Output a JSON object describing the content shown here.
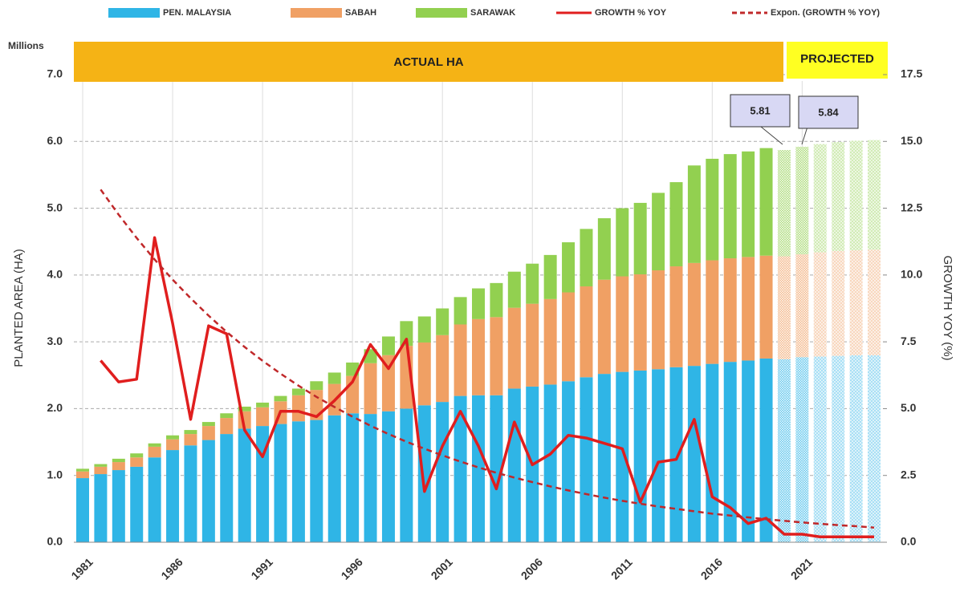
{
  "chart_data": {
    "type": "bar",
    "stacked": true,
    "unit_label": "Millions",
    "y_label": "PLANTED AREA (HA)",
    "y2_label": "GROWTH YOY (%)",
    "bands": [
      "ACTUAL HA",
      "PROJECTED"
    ],
    "annotations": [
      "5.81",
      "5.84"
    ],
    "categories": [
      "1981",
      null,
      null,
      null,
      null,
      "1986",
      null,
      null,
      null,
      null,
      "1991",
      null,
      null,
      null,
      null,
      "1996",
      null,
      null,
      null,
      null,
      "2001",
      null,
      null,
      null,
      null,
      "2006",
      null,
      null,
      null,
      null,
      "2011",
      null,
      null,
      null,
      null,
      "2016",
      null,
      null,
      null,
      null,
      "2021",
      null,
      null,
      null,
      null
    ],
    "series": [
      {
        "name": "PEN. MALAYSIA",
        "color": "#2fb5e6",
        "kind": "bar",
        "values": [
          0.96,
          1.02,
          1.08,
          1.13,
          1.27,
          1.38,
          1.45,
          1.53,
          1.62,
          1.7,
          1.74,
          1.77,
          1.81,
          1.83,
          1.9,
          1.93,
          1.92,
          1.96,
          2.0,
          2.05,
          2.1,
          2.19,
          2.2,
          2.2,
          2.3,
          2.33,
          2.36,
          2.41,
          2.47,
          2.52,
          2.55,
          2.57,
          2.59,
          2.62,
          2.64,
          2.67,
          2.7,
          2.72,
          2.75,
          2.74,
          2.77,
          2.78,
          2.79,
          2.8,
          2.8
        ]
      },
      {
        "name": "SABAH",
        "color": "#f0a064",
        "kind": "bar",
        "values": [
          0.1,
          0.11,
          0.12,
          0.14,
          0.16,
          0.16,
          0.17,
          0.21,
          0.24,
          0.26,
          0.28,
          0.34,
          0.39,
          0.45,
          0.47,
          0.56,
          0.76,
          0.84,
          0.94,
          0.94,
          1.0,
          1.07,
          1.14,
          1.17,
          1.21,
          1.24,
          1.28,
          1.33,
          1.36,
          1.41,
          1.43,
          1.44,
          1.48,
          1.51,
          1.54,
          1.55,
          1.55,
          1.55,
          1.54,
          1.54,
          1.54,
          1.56,
          1.57,
          1.57,
          1.58
        ]
      },
      {
        "name": "SARAWAK",
        "color": "#92d050",
        "kind": "bar",
        "values": [
          0.04,
          0.04,
          0.05,
          0.06,
          0.05,
          0.06,
          0.06,
          0.06,
          0.07,
          0.07,
          0.07,
          0.08,
          0.1,
          0.13,
          0.17,
          0.2,
          0.21,
          0.28,
          0.37,
          0.39,
          0.4,
          0.41,
          0.46,
          0.51,
          0.54,
          0.6,
          0.66,
          0.75,
          0.86,
          0.92,
          1.02,
          1.07,
          1.16,
          1.26,
          1.46,
          1.52,
          1.56,
          1.58,
          1.61,
          1.59,
          1.61,
          1.62,
          1.63,
          1.64,
          1.64
        ]
      },
      {
        "name": "GROWTH % YOY",
        "color": "#e01e1e",
        "kind": "line",
        "axis": "y2",
        "values": [
          null,
          6.8,
          6.0,
          6.1,
          11.4,
          8.2,
          4.6,
          8.1,
          7.8,
          4.2,
          3.2,
          4.9,
          4.9,
          4.7,
          5.3,
          6.0,
          7.4,
          6.5,
          7.6,
          1.9,
          3.6,
          4.9,
          3.6,
          2.0,
          4.5,
          2.9,
          3.3,
          4.0,
          3.9,
          3.7,
          3.5,
          1.5,
          3.0,
          3.1,
          4.6,
          1.7,
          1.3,
          0.7,
          0.9,
          0.3,
          0.3,
          0.2,
          0.2,
          0.2,
          0.2
        ]
      },
      {
        "name": "Expon. (GROWTH % YOY)",
        "color": "#c0282a",
        "kind": "dashed",
        "axis": "y2",
        "values": [
          null,
          13.2,
          12.26,
          11.39,
          10.58,
          9.83,
          9.13,
          8.48,
          7.87,
          7.31,
          6.79,
          6.31,
          5.86,
          5.44,
          5.06,
          4.7,
          4.36,
          4.05,
          3.76,
          3.5,
          3.25,
          3.02,
          2.8,
          2.6,
          2.42,
          2.25,
          2.09,
          1.94,
          1.8,
          1.67,
          1.55,
          1.44,
          1.34,
          1.25,
          1.16,
          1.07,
          1.0,
          0.93,
          0.86,
          0.8,
          0.74,
          0.69,
          0.64,
          0.6,
          0.55
        ]
      }
    ],
    "ylim": [
      0,
      7
    ],
    "yticks": [
      {
        "value": 0,
        "label": "0.0"
      },
      {
        "value": 1,
        "label": "1.0"
      },
      {
        "value": 2,
        "label": "2.0"
      },
      {
        "value": 3,
        "label": "3.0"
      },
      {
        "value": 4,
        "label": "4.0"
      },
      {
        "value": 5,
        "label": "5.0"
      },
      {
        "value": 6,
        "label": "6.0"
      },
      {
        "value": 7,
        "label": "7.0"
      }
    ],
    "y2lim": [
      0,
      17.5
    ],
    "y2ticks": [
      {
        "value": 0,
        "label": "0.0"
      },
      2.5,
      {
        "value": 5,
        "label": "5.0"
      },
      7.5,
      {
        "value": 10,
        "label": "10.0"
      },
      12.5,
      {
        "value": 15,
        "label": "15.0"
      },
      17.5
    ],
    "grid": true
  }
}
